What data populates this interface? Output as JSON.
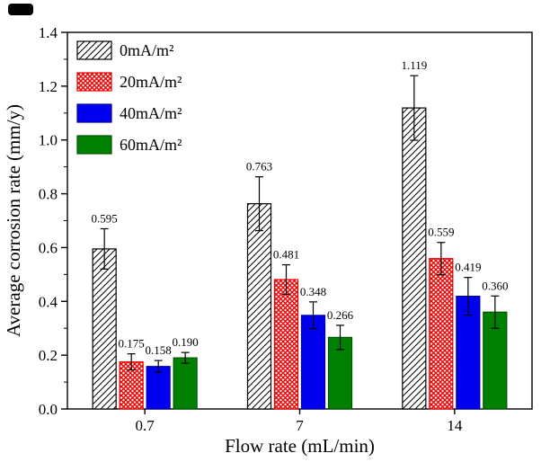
{
  "chart_data": {
    "type": "bar",
    "title": "",
    "xlabel": "Flow rate (mL/min)",
    "ylabel": "Average corrosion rate (mm/y)",
    "categories": [
      "0.7",
      "7",
      "14"
    ],
    "ylim": [
      0,
      1.4
    ],
    "ytick_step": 0.2,
    "ytick_minor_step": 0.1,
    "grid": false,
    "legend_position": "top-left",
    "axis_color": "#000000",
    "series": [
      {
        "name": "0mA/m²",
        "pattern": "hatch",
        "fill": "#ffffff",
        "line_color": "#000000",
        "values": [
          0.595,
          0.763,
          1.119
        ],
        "errors": [
          0.075,
          0.1,
          0.12
        ],
        "labels": [
          "0.595",
          "0.763",
          "1.119"
        ]
      },
      {
        "name": "20mA/m²",
        "pattern": "crosshatch",
        "fill": "#ffffff",
        "line_color": "#ed0000",
        "values": [
          0.175,
          0.481,
          0.559
        ],
        "errors": [
          0.03,
          0.055,
          0.06
        ],
        "labels": [
          "0.175",
          "0.481",
          "0.559"
        ]
      },
      {
        "name": "40mA/m²",
        "pattern": "solid",
        "fill": "#0000ee",
        "line_color": "#0000aa",
        "values": [
          0.158,
          0.348,
          0.419
        ],
        "errors": [
          0.022,
          0.05,
          0.07
        ],
        "labels": [
          "0.158",
          "0.348",
          "0.419"
        ]
      },
      {
        "name": "60mA/m²",
        "pattern": "solid",
        "fill": "#008000",
        "line_color": "#005500",
        "values": [
          0.19,
          0.266,
          0.36
        ],
        "errors": [
          0.02,
          0.045,
          0.06
        ],
        "labels": [
          "0.190",
          "0.266",
          "0.360"
        ]
      }
    ]
  }
}
